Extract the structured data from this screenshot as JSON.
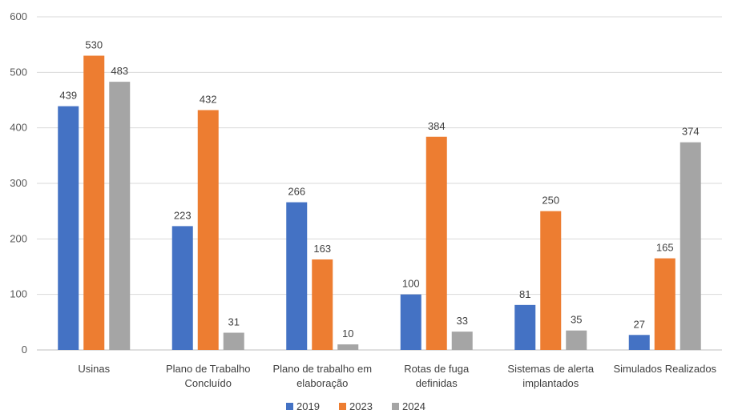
{
  "chart_data": {
    "type": "bar",
    "categories": [
      [
        "Usinas"
      ],
      [
        "Plano de Trabalho",
        "Concluído"
      ],
      [
        "Plano de trabalho em",
        "elaboração"
      ],
      [
        "Rotas de fuga",
        "definidas"
      ],
      [
        "Sistemas de alerta",
        "implantados"
      ],
      [
        "Simulados Realizados"
      ]
    ],
    "series": [
      {
        "name": "2019",
        "color": "#4472C4",
        "values": [
          439,
          223,
          266,
          100,
          81,
          27
        ]
      },
      {
        "name": "2023",
        "color": "#ED7D31",
        "values": [
          530,
          432,
          163,
          384,
          250,
          165
        ]
      },
      {
        "name": "2024",
        "color": "#A5A5A5",
        "values": [
          483,
          31,
          10,
          33,
          35,
          374
        ]
      }
    ],
    "ylim": [
      0,
      600
    ],
    "yticks": [
      0,
      100,
      200,
      300,
      400,
      500,
      600
    ],
    "grid": true,
    "legend": "bottom-center",
    "data_labels": true
  }
}
